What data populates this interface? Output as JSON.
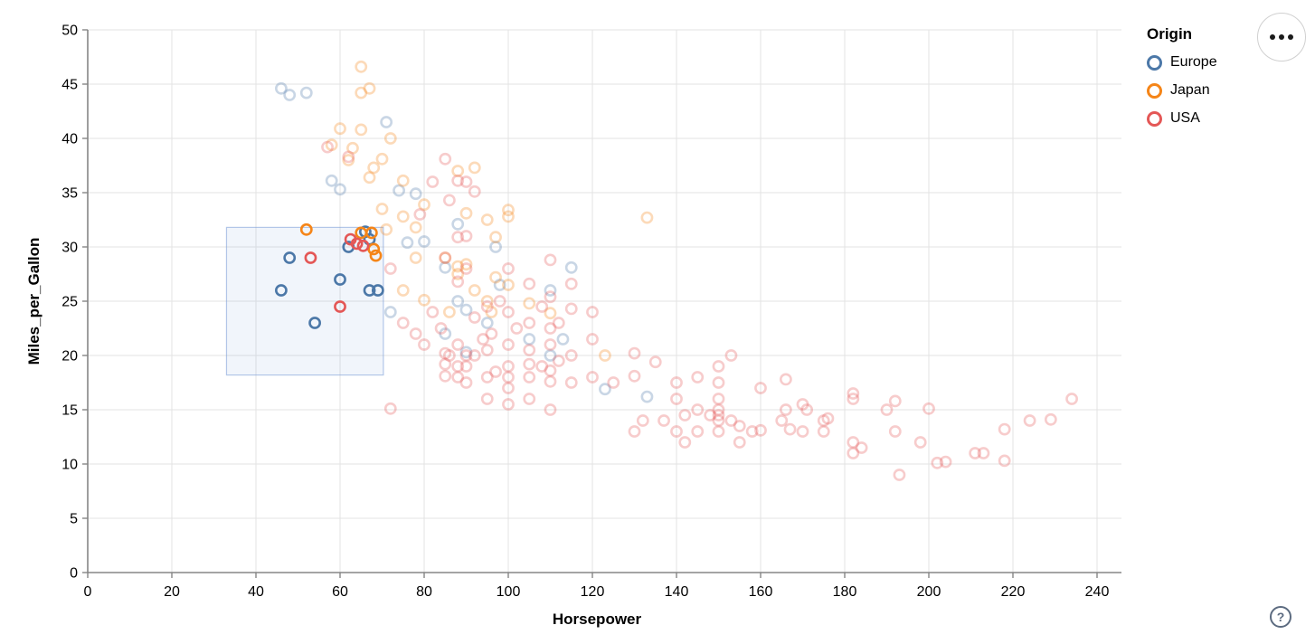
{
  "chart_data": {
    "type": "scatter",
    "title": "",
    "xlabel": "Horsepower",
    "ylabel": "Miles_per_Gallon",
    "xlim": [
      0,
      246
    ],
    "ylim": [
      0,
      50
    ],
    "grid": true,
    "x_ticks": [
      0,
      20,
      40,
      60,
      80,
      100,
      120,
      140,
      160,
      180,
      200,
      220,
      240
    ],
    "y_ticks": [
      0,
      5,
      10,
      15,
      20,
      25,
      30,
      35,
      40,
      45,
      50
    ],
    "legend": {
      "title": "Origin",
      "position": "right",
      "entries": [
        {
          "label": "Europe",
          "color": "#4c78a8"
        },
        {
          "label": "Japan",
          "color": "#f58518"
        },
        {
          "label": "USA",
          "color": "#e45756"
        }
      ]
    },
    "brush": {
      "x1": 33,
      "x2": 70.3,
      "y1": 18.2,
      "y2": 31.8,
      "fill": "rgba(120,155,215,0.10)",
      "stroke": "rgba(120,155,215,0.55)"
    },
    "point_style": {
      "radius": 5.6,
      "stroke_width": 2.6,
      "faded_opacity": 0.3
    },
    "series": [
      {
        "name": "Europe",
        "color": "#4c78a8",
        "selected": [
          [
            46,
            26
          ],
          [
            48,
            29
          ],
          [
            54,
            23
          ],
          [
            60,
            27
          ],
          [
            67,
            26
          ],
          [
            69,
            26
          ],
          [
            62,
            30
          ],
          [
            67,
            30.7
          ],
          [
            66,
            31.4
          ]
        ],
        "unselected": [
          [
            46,
            44.6
          ],
          [
            48,
            44.0
          ],
          [
            52,
            44.2
          ],
          [
            71,
            41.5
          ],
          [
            58,
            36.1
          ],
          [
            60,
            35.3
          ],
          [
            74,
            35.2
          ],
          [
            78,
            34.9
          ],
          [
            76,
            30.4
          ],
          [
            80,
            30.5
          ],
          [
            88,
            32.1
          ],
          [
            97,
            30.0
          ],
          [
            85,
            28.1
          ],
          [
            90,
            24.2
          ],
          [
            88,
            25.0
          ],
          [
            95,
            23.0
          ],
          [
            110,
            26.0
          ],
          [
            115,
            28.1
          ],
          [
            72,
            24.0
          ],
          [
            98,
            26.5
          ],
          [
            90,
            20.3
          ],
          [
            85,
            22.0
          ],
          [
            110,
            20.0
          ],
          [
            105,
            21.5
          ],
          [
            123,
            16.9
          ],
          [
            133,
            16.2
          ],
          [
            113,
            21.5
          ]
        ]
      },
      {
        "name": "Japan",
        "color": "#f58518",
        "selected": [
          [
            52,
            31.6
          ],
          [
            65,
            31.3
          ],
          [
            67.5,
            31.3
          ],
          [
            68,
            29.8
          ],
          [
            68.5,
            29.2
          ]
        ],
        "unselected": [
          [
            65,
            46.6
          ],
          [
            67,
            44.6
          ],
          [
            65,
            44.2
          ],
          [
            60,
            40.9
          ],
          [
            65,
            40.8
          ],
          [
            72,
            40.0
          ],
          [
            58,
            39.4
          ],
          [
            63,
            39.1
          ],
          [
            62,
            38.0
          ],
          [
            68,
            37.3
          ],
          [
            70,
            38.1
          ],
          [
            88,
            37.0
          ],
          [
            92,
            37.3
          ],
          [
            67,
            36.4
          ],
          [
            75,
            36.1
          ],
          [
            70,
            33.5
          ],
          [
            75,
            32.8
          ],
          [
            71,
            31.6
          ],
          [
            80,
            33.9
          ],
          [
            78,
            31.8
          ],
          [
            95,
            32.5
          ],
          [
            97,
            30.9
          ],
          [
            90,
            33.1
          ],
          [
            100,
            33.4
          ],
          [
            133,
            32.7
          ],
          [
            85,
            29.0
          ],
          [
            88,
            27.5
          ],
          [
            88,
            28.2
          ],
          [
            92,
            26.0
          ],
          [
            97,
            27.2
          ],
          [
            75,
            26.0
          ],
          [
            80,
            25.1
          ],
          [
            95,
            25.0
          ],
          [
            100,
            26.5
          ],
          [
            90,
            28.4
          ],
          [
            110,
            23.9
          ],
          [
            96,
            24.0
          ],
          [
            78,
            29.0
          ],
          [
            86,
            24.0
          ],
          [
            105,
            24.8
          ],
          [
            123,
            20.0
          ],
          [
            100,
            32.8
          ]
        ]
      },
      {
        "name": "USA",
        "color": "#e45756",
        "selected": [
          [
            53,
            29
          ],
          [
            60,
            24.5
          ],
          [
            62.5,
            30.7
          ],
          [
            64,
            30.3
          ],
          [
            65.5,
            30.1
          ]
        ],
        "unselected": [
          [
            57,
            39.2
          ],
          [
            62,
            38.3
          ],
          [
            85,
            38.1
          ],
          [
            88,
            36.1
          ],
          [
            92,
            35.1
          ],
          [
            90,
            36.0
          ],
          [
            82,
            36.0
          ],
          [
            86,
            34.3
          ],
          [
            79,
            33.0
          ],
          [
            90,
            31.0
          ],
          [
            88,
            30.9
          ],
          [
            85,
            29.0
          ],
          [
            90,
            28.0
          ],
          [
            88,
            26.8
          ],
          [
            95,
            24.5
          ],
          [
            100,
            24.0
          ],
          [
            105,
            26.6
          ],
          [
            110,
            22.5
          ],
          [
            100,
            28.0
          ],
          [
            98,
            25.0
          ],
          [
            105,
            23.0
          ],
          [
            110,
            25.4
          ],
          [
            115,
            24.3
          ],
          [
            120,
            24.0
          ],
          [
            120,
            21.5
          ],
          [
            115,
            26.6
          ],
          [
            110,
            28.8
          ],
          [
            72,
            28.0
          ],
          [
            75,
            23.0
          ],
          [
            78,
            22.0
          ],
          [
            80,
            21.0
          ],
          [
            82,
            24.0
          ],
          [
            84,
            22.5
          ],
          [
            92,
            23.5
          ],
          [
            94,
            21.5
          ],
          [
            96,
            22.0
          ],
          [
            102,
            22.5
          ],
          [
            108,
            24.5
          ],
          [
            112,
            23.0
          ],
          [
            85,
            20.2
          ],
          [
            85,
            19.2
          ],
          [
            85,
            18.1
          ],
          [
            86,
            20.0
          ],
          [
            88,
            21.0
          ],
          [
            88,
            19.0
          ],
          [
            88,
            18.0
          ],
          [
            90,
            20.0
          ],
          [
            90,
            19.0
          ],
          [
            90,
            17.5
          ],
          [
            92,
            20.0
          ],
          [
            95,
            20.5
          ],
          [
            95,
            18.0
          ],
          [
            97,
            18.5
          ],
          [
            100,
            19.0
          ],
          [
            100,
            18.0
          ],
          [
            100,
            17.0
          ],
          [
            100,
            21.0
          ],
          [
            105,
            18.0
          ],
          [
            105,
            19.2
          ],
          [
            105,
            20.5
          ],
          [
            108,
            19.0
          ],
          [
            110,
            18.6
          ],
          [
            110,
            17.6
          ],
          [
            110,
            21.0
          ],
          [
            112,
            19.5
          ],
          [
            115,
            20.0
          ],
          [
            115,
            17.5
          ],
          [
            120,
            18.0
          ],
          [
            125,
            17.5
          ],
          [
            130,
            18.1
          ],
          [
            95,
            16.0
          ],
          [
            100,
            15.5
          ],
          [
            105,
            16.0
          ],
          [
            110,
            15.0
          ],
          [
            72,
            15.1
          ],
          [
            130,
            20.2
          ],
          [
            135,
            19.4
          ],
          [
            140,
            17.5
          ],
          [
            145,
            18.0
          ],
          [
            150,
            17.5
          ],
          [
            150,
            19.0
          ],
          [
            153,
            20.0
          ],
          [
            130,
            13.0
          ],
          [
            132,
            14.0
          ],
          [
            137,
            14.0
          ],
          [
            140,
            13.0
          ],
          [
            140,
            16.0
          ],
          [
            142,
            14.5
          ],
          [
            145,
            13.0
          ],
          [
            145,
            15.0
          ],
          [
            148,
            14.5
          ],
          [
            150,
            14.0
          ],
          [
            150,
            14.5
          ],
          [
            150,
            13.0
          ],
          [
            150,
            15.0
          ],
          [
            150,
            16.0
          ],
          [
            153,
            14.0
          ],
          [
            155,
            13.5
          ],
          [
            158,
            13.0
          ],
          [
            160,
            13.1
          ],
          [
            165,
            14.0
          ],
          [
            166,
            15.0
          ],
          [
            166,
            17.8
          ],
          [
            167,
            13.2
          ],
          [
            170,
            13.0
          ],
          [
            170,
            15.5
          ],
          [
            171,
            15.0
          ],
          [
            175,
            13.0
          ],
          [
            175,
            14.0
          ],
          [
            176,
            14.2
          ],
          [
            182,
            16.5
          ],
          [
            182,
            16.0
          ],
          [
            182,
            12.0
          ],
          [
            182,
            11.0
          ],
          [
            155,
            12.0
          ],
          [
            142,
            12.0
          ],
          [
            160,
            17.0
          ],
          [
            184,
            11.5
          ],
          [
            190,
            15.0
          ],
          [
            192,
            15.8
          ],
          [
            192,
            13.0
          ],
          [
            193,
            9.0
          ],
          [
            198,
            12.0
          ],
          [
            200,
            15.1
          ],
          [
            202,
            10.1
          ],
          [
            204,
            10.2
          ],
          [
            211,
            11.0
          ],
          [
            213,
            11.0
          ],
          [
            218,
            10.3
          ],
          [
            218,
            13.2
          ],
          [
            224,
            14.0
          ],
          [
            229,
            14.1
          ],
          [
            234,
            16.0
          ]
        ]
      }
    ]
  },
  "ui": {
    "menu_icon": "ellipsis-icon",
    "help_label": "?"
  }
}
